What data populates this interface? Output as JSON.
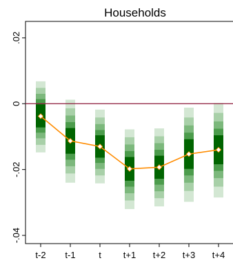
{
  "chart_data": {
    "type": "bar",
    "title": "Households",
    "xlabel": "",
    "ylabel": "",
    "categories": [
      "t-2",
      "t-1",
      "t",
      "t+1",
      "t+2",
      "t+3",
      "t+4"
    ],
    "estimates": [
      -0.0038,
      -0.0113,
      -0.013,
      -0.0198,
      -0.0193,
      -0.0153,
      -0.014
    ],
    "bands": [
      {
        "level": "outer",
        "color": "#d3e7d3",
        "lower": [
          -0.0148,
          -0.024,
          -0.0242,
          -0.032,
          -0.0312,
          -0.0298,
          -0.0285
        ],
        "upper": [
          0.0068,
          0.0012,
          -0.0018,
          -0.0078,
          -0.0075,
          -0.0012,
          0.0002
        ]
      },
      {
        "level": "2",
        "color": "#a8d0a8",
        "lower": [
          -0.0125,
          -0.0212,
          -0.0218,
          -0.0294,
          -0.0287,
          -0.0265,
          -0.0252
        ],
        "upper": [
          0.0048,
          -0.0014,
          -0.0042,
          -0.0102,
          -0.0099,
          -0.0042,
          -0.0028
        ]
      },
      {
        "level": "3",
        "color": "#7cb87c",
        "lower": [
          -0.0105,
          -0.019,
          -0.0198,
          -0.0272,
          -0.0266,
          -0.024,
          -0.0226
        ],
        "upper": [
          0.003,
          -0.0036,
          -0.0062,
          -0.0124,
          -0.012,
          -0.0066,
          -0.0054
        ]
      },
      {
        "level": "4",
        "color": "#4c9c4c",
        "lower": [
          -0.0088,
          -0.017,
          -0.018,
          -0.0252,
          -0.0246,
          -0.0218,
          -0.0204
        ],
        "upper": [
          0.0014,
          -0.0056,
          -0.008,
          -0.0144,
          -0.014,
          -0.0088,
          -0.0076
        ]
      },
      {
        "level": "inner",
        "color": "#006400",
        "lower": [
          -0.0072,
          -0.0152,
          -0.0164,
          -0.0234,
          -0.0228,
          -0.0198,
          -0.0184
        ],
        "upper": [
          -0.0002,
          -0.0074,
          -0.0096,
          -0.0162,
          -0.0158,
          -0.0108,
          -0.0096
        ]
      }
    ],
    "ylim": [
      -0.0425,
      0.025
    ],
    "yticks": [
      0.02,
      0,
      -0.02,
      -0.04
    ],
    "ytick_labels": [
      ".02",
      "0",
      "-.02",
      "-.04"
    ],
    "reference_line": {
      "y": 0,
      "color": "#8b1a3a"
    },
    "line_color": "#ff8c00",
    "marker_color": "#ffffff",
    "grid": false,
    "legend": "none"
  }
}
